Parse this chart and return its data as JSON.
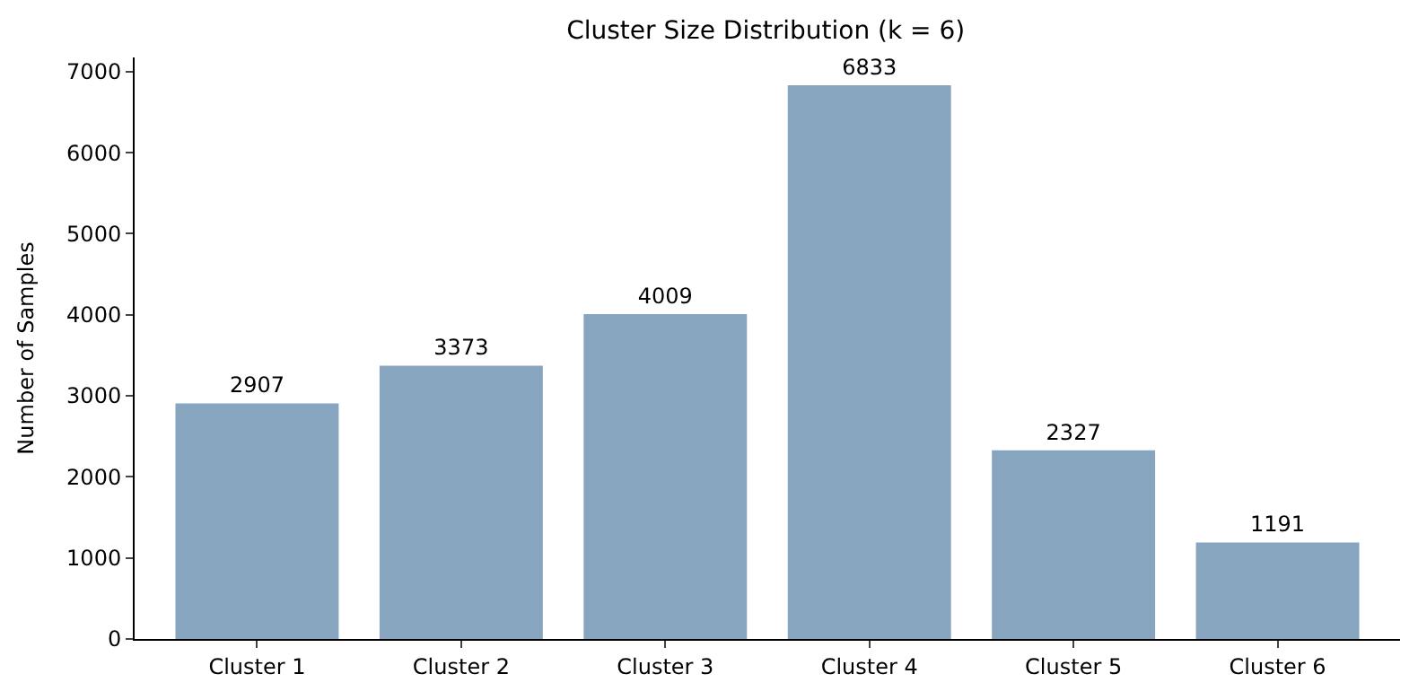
{
  "chart_data": {
    "type": "bar",
    "title": "Cluster Size Distribution (k = 6)",
    "ylabel": "Number of Samples",
    "categories": [
      "Cluster 1",
      "Cluster 2",
      "Cluster 3",
      "Cluster 4",
      "Cluster 5",
      "Cluster 6"
    ],
    "values": [
      2907,
      3373,
      4009,
      6833,
      2327,
      1191
    ],
    "color": "#88a5c0",
    "ylim": [
      0,
      7175
    ],
    "yticks": [
      0,
      1000,
      2000,
      3000,
      4000,
      5000,
      6000,
      7000
    ],
    "data_labels": true,
    "legend": false
  }
}
